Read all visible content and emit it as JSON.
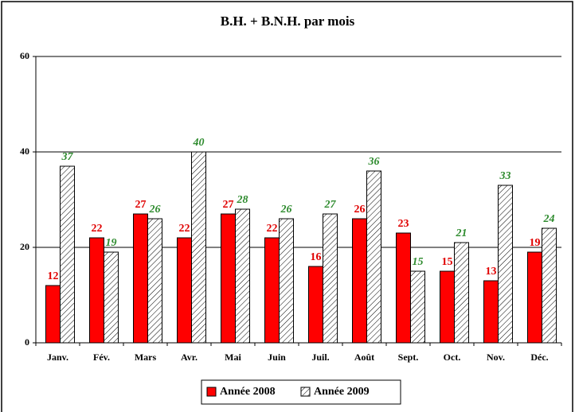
{
  "chart_data": {
    "type": "bar",
    "title": "B.H. + B.N.H. par mois",
    "categories": [
      "Janv.",
      "Fév.",
      "Mars",
      "Avr.",
      "Mai",
      "Juin",
      "Juil.",
      "Août",
      "Sept.",
      "Oct.",
      "Nov.",
      "Déc."
    ],
    "series": [
      {
        "name": "Année 2008",
        "color": "#ff0000",
        "label_color": "#e00000",
        "values": [
          12,
          22,
          27,
          22,
          27,
          22,
          16,
          26,
          23,
          15,
          13,
          19
        ]
      },
      {
        "name": "Année 2009",
        "color": "#ffffff",
        "pattern": "hatch",
        "label_color": "#2e8b2e",
        "values": [
          37,
          19,
          26,
          40,
          28,
          26,
          27,
          36,
          15,
          21,
          33,
          24
        ]
      }
    ],
    "ylim": [
      0,
      60
    ],
    "yticks": [
      0,
      20,
      40,
      60
    ],
    "grid": true,
    "legend": "bottom"
  }
}
